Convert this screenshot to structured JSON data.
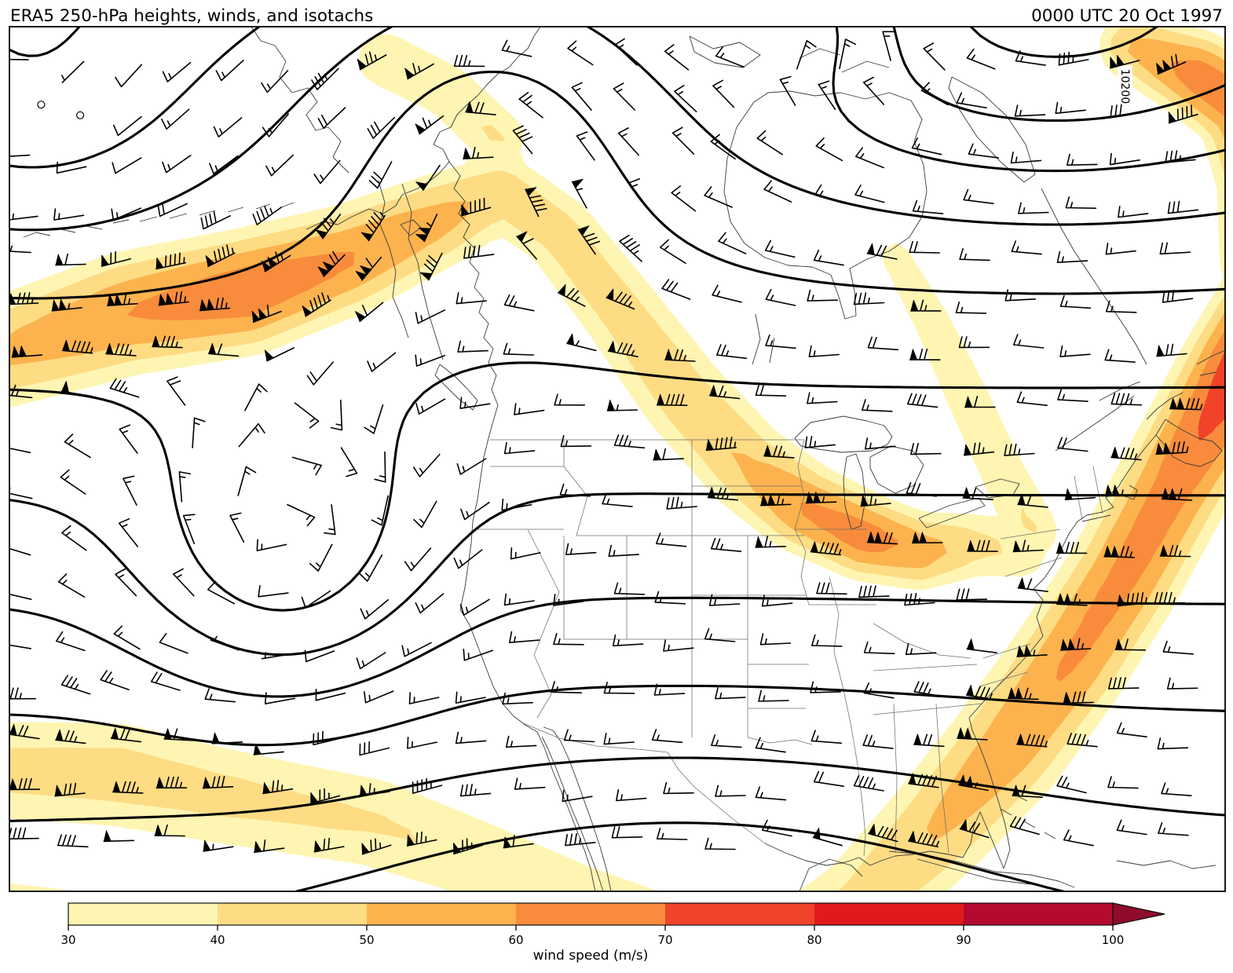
{
  "header": {
    "title": "ERA5 250-hPa heights, winds, and isotachs",
    "datetime": "0000 UTC 20 Oct 1997"
  },
  "map": {
    "contour_label": "10200"
  },
  "colorbar": {
    "label": "wind speed (m/s)",
    "ticks": [
      30,
      40,
      50,
      60,
      70,
      80,
      90,
      100
    ],
    "segment_colors": [
      "#fef5b2",
      "#fedc84",
      "#fcb34d",
      "#f88c3c",
      "#f0432a",
      "#e1191c",
      "#b40a2f"
    ],
    "over_color": "#8e0b2b"
  },
  "chart_data": {
    "type": "heatmap",
    "subtype": "filled isotach contour map with geopotential height contours and wind barbs",
    "title": "ERA5 250-hPa heights, winds, and isotachs",
    "valid_time": "0000 UTC 20 Oct 1997",
    "fill_variable": "wind speed (m/s)",
    "fill_levels": [
      30,
      40,
      50,
      60,
      70,
      80,
      90,
      100
    ],
    "fill_colors": [
      "#fef5b2",
      "#fedc84",
      "#fcb34d",
      "#f88c3c",
      "#f0432a",
      "#e1191c",
      "#b40a2f"
    ],
    "colorbar_over_color": "#8e0b2b",
    "colorbar_extended_with_arrow": true,
    "contour_variable": "250-hPa geopotential height",
    "visible_contour_labels": [
      "10200"
    ],
    "legend_position": "bottom horizontal colorbar",
    "grid": "off"
  }
}
